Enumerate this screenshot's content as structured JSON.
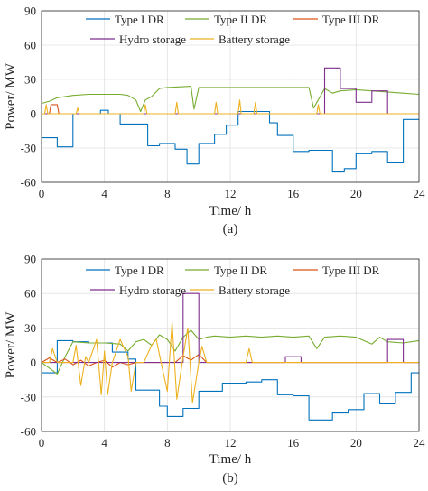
{
  "chart_data": [
    {
      "type": "line",
      "caption": "(a)",
      "xlabel": "Time/ h",
      "ylabel": "Power/ MW",
      "xlim": [
        0,
        24
      ],
      "ylim": [
        -60,
        90
      ],
      "xticks": [
        "0",
        "4",
        "8",
        "12",
        "16",
        "20",
        "24"
      ],
      "yticks": [
        "-60",
        "-30",
        "0",
        "30",
        "60",
        "90"
      ],
      "legend_position": "top",
      "series": [
        {
          "name": "Type I DR",
          "color": "#0072BD",
          "x": [
            0,
            1,
            1,
            2,
            2,
            3.75,
            3.75,
            4.25,
            4.25,
            5,
            5,
            6.75,
            6.75,
            7.5,
            7.5,
            8.5,
            8.5,
            9.25,
            9.25,
            10,
            10,
            11,
            11,
            11.75,
            11.75,
            12.5,
            12.5,
            14.5,
            14.5,
            15,
            15,
            16,
            16,
            17,
            17,
            18.5,
            18.5,
            19.25,
            19.25,
            20,
            20,
            21,
            21,
            22,
            22,
            23,
            23,
            24
          ],
          "y": [
            -21,
            -21,
            -29,
            -29,
            0,
            0,
            3,
            3,
            0,
            0,
            -9,
            -9,
            -28,
            -28,
            -26,
            -26,
            -31,
            -31,
            -44,
            -44,
            -26,
            -26,
            -18,
            -18,
            -10,
            -10,
            2,
            2,
            -8,
            -8,
            -19,
            -19,
            -33,
            -33,
            -32,
            -32,
            -51,
            -51,
            -48,
            -48,
            -35,
            -35,
            -33,
            -33,
            -43,
            -43,
            -5,
            -5
          ]
        },
        {
          "name": "Type II DR",
          "color": "#77AC30",
          "x": [
            0,
            0.5,
            1,
            2,
            3,
            4,
            5,
            5.5,
            6,
            6.3,
            6.6,
            7,
            7.5,
            8,
            9.5,
            9.7,
            10,
            12,
            14,
            16,
            17,
            17.3,
            18,
            18.5,
            19,
            20,
            21,
            22,
            23,
            24
          ],
          "y": [
            9,
            11,
            14,
            16,
            17,
            17,
            17,
            16,
            12,
            2,
            12,
            15,
            22,
            23,
            24,
            4,
            23,
            23,
            23,
            23,
            23,
            5,
            22,
            18,
            20,
            21,
            20,
            19,
            18,
            17
          ]
        },
        {
          "name": "Type III DR",
          "color": "#D95319",
          "x": [
            0,
            0.5,
            0.6,
            1,
            1.1,
            24
          ],
          "y": [
            0,
            0,
            8,
            8,
            0,
            0
          ]
        },
        {
          "name": "Hydro storage",
          "color": "#7E2F8E",
          "x": [
            0,
            18,
            18,
            19,
            19,
            20,
            20,
            21,
            21,
            22,
            22,
            24
          ],
          "y": [
            0,
            0,
            40,
            40,
            22,
            22,
            10,
            10,
            20,
            20,
            0,
            0
          ]
        },
        {
          "name": "Battery storage",
          "color": "#EDB120",
          "x": [
            0,
            0.2,
            0.3,
            0.4,
            0.8,
            2.2,
            2.3,
            2.4,
            6.5,
            6.6,
            6.7,
            8.5,
            8.6,
            8.7,
            11,
            11.1,
            11.2,
            12.5,
            12.6,
            12.7,
            13.5,
            13.6,
            13.7,
            17.5,
            17.6,
            17.7,
            24
          ],
          "y": [
            0,
            0,
            8,
            0,
            0,
            0,
            5,
            0,
            0,
            8,
            0,
            0,
            10,
            0,
            0,
            10,
            0,
            0,
            12,
            0,
            0,
            10,
            0,
            0,
            8,
            0,
            0
          ]
        }
      ]
    },
    {
      "type": "line",
      "caption": "(b)",
      "xlabel": "Time/ h",
      "ylabel": "Power/ MW",
      "xlim": [
        0,
        24
      ],
      "ylim": [
        -60,
        90
      ],
      "xticks": [
        "0",
        "4",
        "8",
        "12",
        "16",
        "20",
        "24"
      ],
      "yticks": [
        "-60",
        "-30",
        "0",
        "30",
        "60",
        "90"
      ],
      "legend_position": "top",
      "series": [
        {
          "name": "Type I DR",
          "color": "#0072BD",
          "x": [
            0,
            1,
            1,
            2,
            2,
            3,
            3,
            4.5,
            4.5,
            5.5,
            5.5,
            6,
            6,
            7.5,
            7.5,
            8,
            8,
            9,
            9,
            10,
            10,
            11.5,
            11.5,
            13,
            13,
            14,
            14,
            15,
            15,
            16,
            16,
            17,
            17,
            18.5,
            18.5,
            19.5,
            19.5,
            20.5,
            20.5,
            21.5,
            21.5,
            22.5,
            22.5,
            23.5,
            23.5,
            24
          ],
          "y": [
            -9,
            -9,
            19,
            19,
            18,
            18,
            17,
            17,
            9,
            9,
            3,
            3,
            -24,
            -24,
            -38,
            -38,
            -47,
            -47,
            -40,
            -40,
            -25,
            -25,
            -18,
            -18,
            -17,
            -17,
            -15,
            -15,
            -28,
            -28,
            -29,
            -29,
            -50,
            -50,
            -44,
            -44,
            -41,
            -41,
            -27,
            -27,
            -36,
            -36,
            -26,
            -26,
            -9,
            -9
          ]
        },
        {
          "name": "Type II DR",
          "color": "#77AC30",
          "x": [
            0,
            1,
            1.5,
            2,
            3,
            4,
            5,
            5.5,
            6,
            6.5,
            7,
            7.5,
            8,
            8.5,
            9,
            9.5,
            10,
            10.5,
            11,
            12,
            13,
            14,
            15,
            16,
            17,
            17.5,
            18,
            19,
            20,
            21,
            21.5,
            22,
            23,
            24
          ],
          "y": [
            0,
            -10,
            5,
            18,
            17,
            17,
            16,
            10,
            18,
            20,
            15,
            24,
            20,
            10,
            22,
            28,
            20,
            22,
            23,
            22,
            23,
            22,
            23,
            22,
            23,
            12,
            22,
            23,
            22,
            16,
            22,
            18,
            17,
            19
          ]
        },
        {
          "name": "Type III DR",
          "color": "#D95319",
          "x": [
            0,
            0.5,
            1,
            1.5,
            2,
            2.5,
            3,
            3.5,
            4,
            4.5,
            5,
            5.5,
            6,
            8.5,
            9,
            9.5,
            10,
            10.5,
            24
          ],
          "y": [
            0,
            4,
            0,
            3,
            -2,
            2,
            -3,
            0,
            2,
            -4,
            0,
            -2,
            0,
            0,
            6,
            2,
            7,
            0,
            0
          ]
        },
        {
          "name": "Hydro storage",
          "color": "#7E2F8E",
          "x": [
            0,
            9,
            9,
            10,
            10,
            15.5,
            15.5,
            16.5,
            16.5,
            22,
            22,
            23,
            23,
            24
          ],
          "y": [
            0,
            0,
            60,
            60,
            0,
            0,
            5,
            5,
            0,
            0,
            20,
            20,
            0,
            0
          ]
        },
        {
          "name": "Battery storage",
          "color": "#EDB120",
          "x": [
            0,
            0.5,
            0.7,
            1,
            2,
            2.2,
            2.5,
            2.8,
            3,
            3.5,
            3.8,
            4,
            4.2,
            4.5,
            5,
            5.5,
            5.7,
            6,
            6.5,
            7,
            7.3,
            7.6,
            8,
            8.3,
            8.6,
            9,
            9.3,
            9.6,
            10,
            10.2,
            10.5,
            11,
            13,
            13.2,
            13.4,
            15,
            24
          ],
          "y": [
            0,
            0,
            12,
            0,
            0,
            15,
            -20,
            5,
            0,
            20,
            -28,
            10,
            -28,
            0,
            20,
            5,
            -25,
            0,
            0,
            15,
            20,
            0,
            -25,
            35,
            -32,
            5,
            30,
            -35,
            0,
            14,
            0,
            0,
            0,
            12,
            0,
            0,
            0
          ]
        }
      ]
    }
  ]
}
